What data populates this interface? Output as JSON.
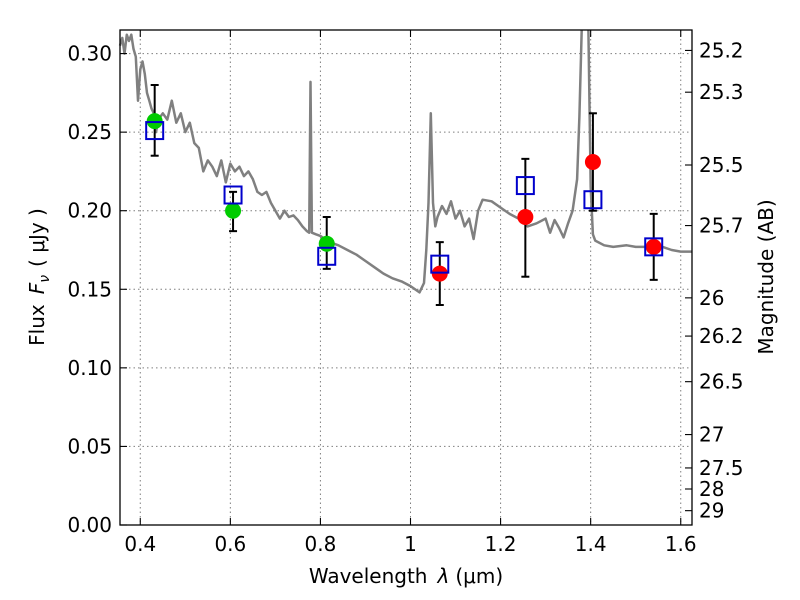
{
  "chart_data": {
    "type": "scatter",
    "xlabel_main": "Wavelength",
    "xlabel_symbol": "λ",
    "xlabel_unit": "(μm)",
    "ylabel_main": "Flux",
    "ylabel_symbol": "F",
    "ylabel_sub": "ν",
    "ylabel_unit": "( μJy )",
    "y2label": "Magnitude (AB)",
    "xlim": [
      0.355,
      1.625
    ],
    "ylim": [
      0.0,
      0.315
    ],
    "grid": true,
    "x_ticks": [
      {
        "value": 0.4,
        "label": "0.4"
      },
      {
        "value": 0.6,
        "label": "0.6"
      },
      {
        "value": 0.8,
        "label": "0.8"
      },
      {
        "value": 1.0,
        "label": "1"
      },
      {
        "value": 1.2,
        "label": "1.2"
      },
      {
        "value": 1.4,
        "label": "1.4"
      },
      {
        "value": 1.6,
        "label": "1.6"
      }
    ],
    "y_ticks": [
      {
        "value": 0.0,
        "label": "0.00"
      },
      {
        "value": 0.05,
        "label": "0.05"
      },
      {
        "value": 0.1,
        "label": "0.10"
      },
      {
        "value": 0.15,
        "label": "0.15"
      },
      {
        "value": 0.2,
        "label": "0.20"
      },
      {
        "value": 0.25,
        "label": "0.25"
      },
      {
        "value": 0.3,
        "label": "0.30"
      }
    ],
    "y2_ticks": [
      {
        "mag": 25.2,
        "label": "25.2"
      },
      {
        "mag": 25.3,
        "label": "25.3"
      },
      {
        "mag": 25.5,
        "label": "25.5"
      },
      {
        "mag": 25.7,
        "label": "25.7"
      },
      {
        "mag": 26,
        "label": "26"
      },
      {
        "mag": 26.2,
        "label": "26.2"
      },
      {
        "mag": 26.5,
        "label": "26.5"
      },
      {
        "mag": 27,
        "label": "27"
      },
      {
        "mag": 27.5,
        "label": "27.5"
      },
      {
        "mag": 28,
        "label": "28"
      },
      {
        "mag": 29,
        "label": "29"
      }
    ],
    "model_spectrum": {
      "color": "#808080",
      "points": [
        [
          0.355,
          0.305
        ],
        [
          0.36,
          0.31
        ],
        [
          0.365,
          0.3
        ],
        [
          0.37,
          0.312
        ],
        [
          0.375,
          0.308
        ],
        [
          0.38,
          0.312
        ],
        [
          0.385,
          0.303
        ],
        [
          0.39,
          0.298
        ],
        [
          0.395,
          0.27
        ],
        [
          0.4,
          0.29
        ],
        [
          0.405,
          0.295
        ],
        [
          0.41,
          0.287
        ],
        [
          0.415,
          0.275
        ],
        [
          0.42,
          0.27
        ],
        [
          0.425,
          0.265
        ],
        [
          0.43,
          0.262
        ],
        [
          0.435,
          0.25
        ],
        [
          0.44,
          0.258
        ],
        [
          0.45,
          0.262
        ],
        [
          0.46,
          0.258
        ],
        [
          0.47,
          0.27
        ],
        [
          0.48,
          0.256
        ],
        [
          0.49,
          0.262
        ],
        [
          0.5,
          0.25
        ],
        [
          0.51,
          0.256
        ],
        [
          0.52,
          0.243
        ],
        [
          0.53,
          0.24
        ],
        [
          0.54,
          0.225
        ],
        [
          0.55,
          0.232
        ],
        [
          0.56,
          0.228
        ],
        [
          0.57,
          0.222
        ],
        [
          0.58,
          0.232
        ],
        [
          0.59,
          0.218
        ],
        [
          0.6,
          0.23
        ],
        [
          0.61,
          0.225
        ],
        [
          0.62,
          0.228
        ],
        [
          0.63,
          0.222
        ],
        [
          0.64,
          0.225
        ],
        [
          0.65,
          0.22
        ],
        [
          0.66,
          0.212
        ],
        [
          0.67,
          0.21
        ],
        [
          0.68,
          0.212
        ],
        [
          0.69,
          0.205
        ],
        [
          0.7,
          0.2
        ],
        [
          0.71,
          0.195
        ],
        [
          0.72,
          0.2
        ],
        [
          0.73,
          0.196
        ],
        [
          0.74,
          0.197
        ],
        [
          0.75,
          0.194
        ],
        [
          0.76,
          0.19
        ],
        [
          0.77,
          0.187
        ],
        [
          0.775,
          0.186
        ],
        [
          0.778,
          0.282
        ],
        [
          0.781,
          0.186
        ],
        [
          0.79,
          0.185
        ],
        [
          0.8,
          0.184
        ],
        [
          0.82,
          0.18
        ],
        [
          0.84,
          0.178
        ],
        [
          0.86,
          0.175
        ],
        [
          0.88,
          0.172
        ],
        [
          0.9,
          0.168
        ],
        [
          0.92,
          0.164
        ],
        [
          0.94,
          0.16
        ],
        [
          0.96,
          0.157
        ],
        [
          0.98,
          0.155
        ],
        [
          1.0,
          0.152
        ],
        [
          1.02,
          0.148
        ],
        [
          1.03,
          0.154
        ],
        [
          1.035,
          0.175
        ],
        [
          1.04,
          0.205
        ],
        [
          1.045,
          0.262
        ],
        [
          1.05,
          0.205
        ],
        [
          1.055,
          0.19
        ],
        [
          1.06,
          0.196
        ],
        [
          1.07,
          0.203
        ],
        [
          1.08,
          0.198
        ],
        [
          1.09,
          0.206
        ],
        [
          1.1,
          0.195
        ],
        [
          1.11,
          0.2
        ],
        [
          1.12,
          0.19
        ],
        [
          1.13,
          0.195
        ],
        [
          1.14,
          0.182
        ],
        [
          1.15,
          0.2
        ],
        [
          1.16,
          0.207
        ],
        [
          1.18,
          0.206
        ],
        [
          1.2,
          0.202
        ],
        [
          1.22,
          0.198
        ],
        [
          1.24,
          0.195
        ],
        [
          1.26,
          0.19
        ],
        [
          1.28,
          0.192
        ],
        [
          1.3,
          0.195
        ],
        [
          1.31,
          0.186
        ],
        [
          1.32,
          0.194
        ],
        [
          1.33,
          0.189
        ],
        [
          1.34,
          0.183
        ],
        [
          1.35,
          0.192
        ],
        [
          1.36,
          0.2
        ],
        [
          1.37,
          0.22
        ],
        [
          1.375,
          0.26
        ],
        [
          1.38,
          0.315
        ]
      ],
      "points_segment2": [
        [
          1.395,
          0.315
        ],
        [
          1.4,
          0.215
        ],
        [
          1.405,
          0.185
        ],
        [
          1.41,
          0.181
        ],
        [
          1.43,
          0.178
        ],
        [
          1.45,
          0.177
        ],
        [
          1.48,
          0.178
        ],
        [
          1.5,
          0.177
        ],
        [
          1.52,
          0.177
        ],
        [
          1.54,
          0.176
        ],
        [
          1.56,
          0.177
        ],
        [
          1.58,
          0.175
        ],
        [
          1.6,
          0.174
        ],
        [
          1.625,
          0.174
        ]
      ]
    },
    "series": [
      {
        "marker": "circle",
        "color": "#00cc00",
        "points": [
          {
            "x": 0.432,
            "y": 0.257,
            "yerr_low": 0.235,
            "yerr_high": 0.28
          },
          {
            "x": 0.606,
            "y": 0.2,
            "yerr_low": 0.187,
            "yerr_high": 0.212
          },
          {
            "x": 0.814,
            "y": 0.179,
            "yerr_low": 0.163,
            "yerr_high": 0.196
          }
        ]
      },
      {
        "marker": "circle",
        "color": "#ff0000",
        "points": [
          {
            "x": 1.065,
            "y": 0.16,
            "yerr_low": 0.14,
            "yerr_high": 0.18
          },
          {
            "x": 1.255,
            "y": 0.196,
            "yerr_low": 0.158,
            "yerr_high": 0.233
          },
          {
            "x": 1.405,
            "y": 0.231,
            "yerr_low": 0.2,
            "yerr_high": 0.262
          },
          {
            "x": 1.54,
            "y": 0.177,
            "yerr_low": 0.156,
            "yerr_high": 0.198
          }
        ]
      },
      {
        "marker": "open-square",
        "color": "#0000cc",
        "points": [
          {
            "x": 0.432,
            "y": 0.251
          },
          {
            "x": 0.606,
            "y": 0.21
          },
          {
            "x": 0.814,
            "y": 0.171
          },
          {
            "x": 1.065,
            "y": 0.166
          },
          {
            "x": 1.255,
            "y": 0.216
          },
          {
            "x": 1.405,
            "y": 0.207
          },
          {
            "x": 1.54,
            "y": 0.177
          }
        ]
      }
    ]
  }
}
